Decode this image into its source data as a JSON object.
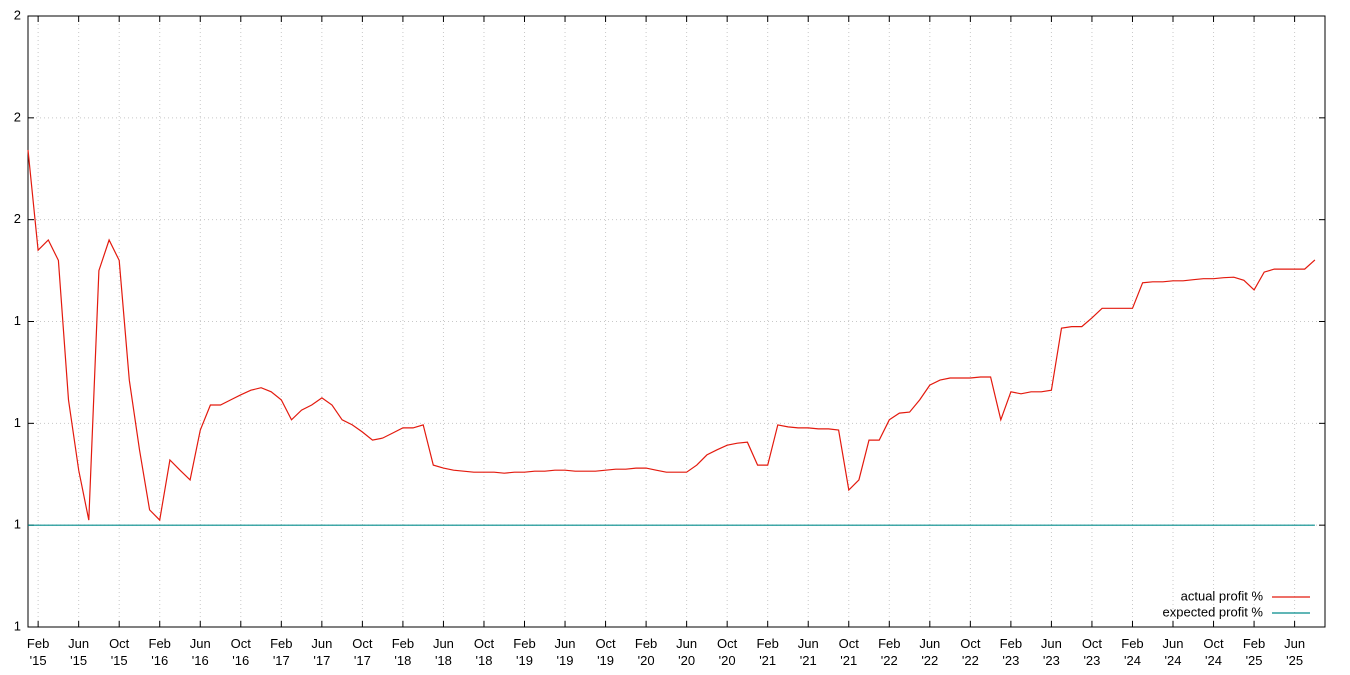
{
  "chart_data": {
    "type": "line",
    "x": [
      "2015-01",
      "2015-02",
      "2015-03",
      "2015-04",
      "2015-05",
      "2015-06",
      "2015-07",
      "2015-08",
      "2015-09",
      "2015-10",
      "2015-11",
      "2015-12",
      "2016-01",
      "2016-02",
      "2016-03",
      "2016-04",
      "2016-05",
      "2016-06",
      "2016-07",
      "2016-08",
      "2016-09",
      "2016-10",
      "2016-11",
      "2016-12",
      "2017-01",
      "2017-02",
      "2017-03",
      "2017-04",
      "2017-05",
      "2017-06",
      "2017-07",
      "2017-08",
      "2017-09",
      "2017-10",
      "2017-11",
      "2017-12",
      "2018-01",
      "2018-02",
      "2018-03",
      "2018-04",
      "2018-05",
      "2018-06",
      "2018-07",
      "2018-08",
      "2018-09",
      "2018-10",
      "2018-11",
      "2018-12",
      "2019-01",
      "2019-02",
      "2019-03",
      "2019-04",
      "2019-05",
      "2019-06",
      "2019-07",
      "2019-08",
      "2019-09",
      "2019-10",
      "2019-11",
      "2019-12",
      "2020-01",
      "2020-02",
      "2020-03",
      "2020-04",
      "2020-05",
      "2020-06",
      "2020-07",
      "2020-08",
      "2020-09",
      "2020-10",
      "2020-11",
      "2020-12",
      "2021-01",
      "2021-02",
      "2021-03",
      "2021-04",
      "2021-05",
      "2021-06",
      "2021-07",
      "2021-08",
      "2021-09",
      "2021-10",
      "2021-11",
      "2021-12",
      "2022-01",
      "2022-02",
      "2022-03",
      "2022-04",
      "2022-05",
      "2022-06",
      "2022-07",
      "2022-08",
      "2022-09",
      "2022-10",
      "2022-11",
      "2022-12",
      "2023-01",
      "2023-02",
      "2023-03",
      "2023-04",
      "2023-05",
      "2023-06",
      "2023-07",
      "2023-08",
      "2023-09",
      "2023-10",
      "2023-11",
      "2023-12",
      "2024-01",
      "2024-02",
      "2024-03",
      "2024-04",
      "2024-05",
      "2024-06",
      "2024-07",
      "2024-08",
      "2024-09",
      "2024-10",
      "2024-11",
      "2024-12",
      "2025-01",
      "2025-02",
      "2025-03",
      "2025-04",
      "2025-05",
      "2025-06",
      "2025-07",
      "2025-08"
    ],
    "series": [
      {
        "name": "actual profit %",
        "color": "#e31a0e",
        "values": [
          1.737,
          1.54,
          1.56,
          1.52,
          1.246,
          1.108,
          1.01,
          1.5,
          1.56,
          1.52,
          1.285,
          1.148,
          1.03,
          1.01,
          1.128,
          1.108,
          1.089,
          1.187,
          1.236,
          1.236,
          1.246,
          1.256,
          1.265,
          1.27,
          1.262,
          1.246,
          1.207,
          1.226,
          1.236,
          1.25,
          1.236,
          1.207,
          1.197,
          1.183,
          1.167,
          1.171,
          1.181,
          1.191,
          1.191,
          1.197,
          1.118,
          1.112,
          1.108,
          1.106,
          1.104,
          1.104,
          1.104,
          1.102,
          1.104,
          1.104,
          1.106,
          1.106,
          1.108,
          1.108,
          1.106,
          1.106,
          1.106,
          1.108,
          1.11,
          1.11,
          1.112,
          1.112,
          1.108,
          1.104,
          1.104,
          1.104,
          1.118,
          1.138,
          1.148,
          1.157,
          1.161,
          1.163,
          1.118,
          1.118,
          1.197,
          1.193,
          1.191,
          1.191,
          1.189,
          1.189,
          1.187,
          1.069,
          1.089,
          1.167,
          1.167,
          1.207,
          1.22,
          1.222,
          1.246,
          1.275,
          1.285,
          1.289,
          1.289,
          1.289,
          1.291,
          1.291,
          1.207,
          1.262,
          1.258,
          1.262,
          1.262,
          1.265,
          1.387,
          1.39,
          1.39,
          1.407,
          1.426,
          1.426,
          1.426,
          1.426,
          1.476,
          1.478,
          1.478,
          1.48,
          1.48,
          1.482,
          1.484,
          1.484,
          1.486,
          1.487,
          1.481,
          1.462,
          1.497,
          1.503,
          1.503,
          1.503,
          1.503,
          1.521
        ]
      },
      {
        "name": "expected profit %",
        "color": "#008b8b",
        "x": [
          "2015-01",
          "2025-08"
        ],
        "values": [
          1.0,
          1.0
        ]
      }
    ],
    "xlim": [
      "2015-01",
      "2025-09"
    ],
    "xticks": [
      {
        "value": "2015-02",
        "label": "Feb\n'15"
      },
      {
        "value": "2015-06",
        "label": "Jun\n'15"
      },
      {
        "value": "2015-10",
        "label": "Oct\n'15"
      },
      {
        "value": "2016-02",
        "label": "Feb\n'16"
      },
      {
        "value": "2016-06",
        "label": "Jun\n'16"
      },
      {
        "value": "2016-10",
        "label": "Oct\n'16"
      },
      {
        "value": "2017-02",
        "label": "Feb\n'17"
      },
      {
        "value": "2017-06",
        "label": "Jun\n'17"
      },
      {
        "value": "2017-10",
        "label": "Oct\n'17"
      },
      {
        "value": "2018-02",
        "label": "Feb\n'18"
      },
      {
        "value": "2018-06",
        "label": "Jun\n'18"
      },
      {
        "value": "2018-10",
        "label": "Oct\n'18"
      },
      {
        "value": "2019-02",
        "label": "Feb\n'19"
      },
      {
        "value": "2019-06",
        "label": "Jun\n'19"
      },
      {
        "value": "2019-10",
        "label": "Oct\n'19"
      },
      {
        "value": "2020-02",
        "label": "Feb\n'20"
      },
      {
        "value": "2020-06",
        "label": "Jun\n'20"
      },
      {
        "value": "2020-10",
        "label": "Oct\n'20"
      },
      {
        "value": "2021-02",
        "label": "Feb\n'21"
      },
      {
        "value": "2021-06",
        "label": "Jun\n'21"
      },
      {
        "value": "2021-10",
        "label": "Oct\n'21"
      },
      {
        "value": "2022-02",
        "label": "Feb\n'22"
      },
      {
        "value": "2022-06",
        "label": "Jun\n'22"
      },
      {
        "value": "2022-10",
        "label": "Oct\n'22"
      },
      {
        "value": "2023-02",
        "label": "Feb\n'23"
      },
      {
        "value": "2023-06",
        "label": "Jun\n'23"
      },
      {
        "value": "2023-10",
        "label": "Oct\n'23"
      },
      {
        "value": "2024-02",
        "label": "Feb\n'24"
      },
      {
        "value": "2024-06",
        "label": "Jun\n'24"
      },
      {
        "value": "2024-10",
        "label": "Oct\n'24"
      },
      {
        "value": "2025-02",
        "label": "Feb\n'25"
      },
      {
        "value": "2025-06",
        "label": "Jun\n'25"
      }
    ],
    "ylim": [
      0.8,
      2.0
    ],
    "yticks": [
      {
        "value": 0.8,
        "label": "1"
      },
      {
        "value": 1.0,
        "label": "1"
      },
      {
        "value": 1.2,
        "label": "1"
      },
      {
        "value": 1.4,
        "label": "1"
      },
      {
        "value": 1.6,
        "label": "2"
      },
      {
        "value": 1.8,
        "label": "2"
      },
      {
        "value": 2.0,
        "label": "2"
      }
    ],
    "grid": true,
    "legend": "bottom-right"
  }
}
